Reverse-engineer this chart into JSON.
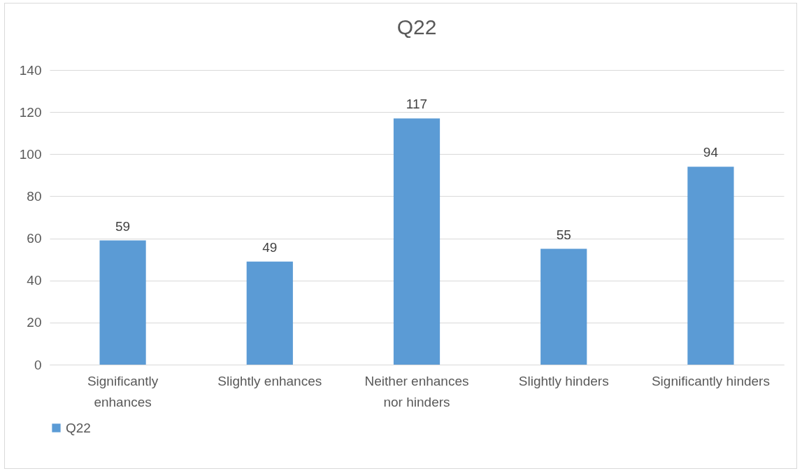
{
  "chart_data": {
    "type": "bar",
    "title": "Q22",
    "categories": [
      "Significantly enhances",
      "Slightly enhances",
      "Neither enhances nor hinders",
      "Slightly hinders",
      "Significantly hinders"
    ],
    "series": [
      {
        "name": "Q22",
        "color": "#5b9bd5",
        "values": [
          59,
          49,
          117,
          55,
          94
        ]
      }
    ],
    "ylim": [
      0,
      140
    ],
    "yticks": [
      0,
      20,
      40,
      60,
      80,
      100,
      120,
      140
    ],
    "grid": "y",
    "legend": "bottom",
    "data_labels": true
  }
}
